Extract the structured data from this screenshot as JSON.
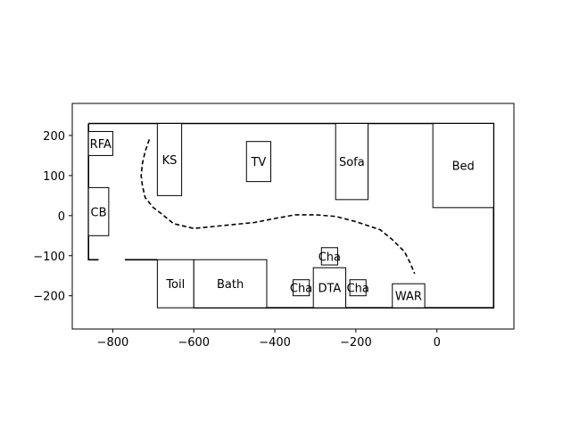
{
  "chart_data": {
    "type": "floor-plan",
    "title": "",
    "xlabel": "",
    "ylabel": "",
    "xlim": [
      -900,
      190
    ],
    "ylim": [
      -283,
      280
    ],
    "grid": false,
    "xticks": [
      -800,
      -600,
      -400,
      -200,
      0
    ],
    "xtick_labels": [
      "−800",
      "−600",
      "−400",
      "−200",
      "0"
    ],
    "yticks": [
      200,
      100,
      0,
      -100,
      -200
    ],
    "ytick_labels": [
      "200",
      "100",
      "0",
      "−100",
      "−200"
    ],
    "walls": [
      [
        [
          -860,
          230
        ],
        [
          140,
          230
        ],
        [
          140,
          -230
        ],
        [
          -600,
          -230
        ]
      ],
      [
        [
          -860,
          230
        ],
        [
          -860,
          -110
        ],
        [
          -835,
          -110
        ]
      ],
      [
        [
          -770,
          -110
        ],
        [
          -690,
          -110
        ]
      ]
    ],
    "path": [
      [
        -710,
        190
      ],
      [
        -720,
        160
      ],
      [
        -727,
        130
      ],
      [
        -730,
        100
      ],
      [
        -727,
        75
      ],
      [
        -720,
        45
      ],
      [
        -700,
        20
      ],
      [
        -680,
        5
      ],
      [
        -650,
        -20
      ],
      [
        -600,
        -32
      ],
      [
        -550,
        -27
      ],
      [
        -500,
        -22
      ],
      [
        -450,
        -17
      ],
      [
        -400,
        -7
      ],
      [
        -350,
        2
      ],
      [
        -300,
        2
      ],
      [
        -250,
        -2
      ],
      [
        -200,
        -15
      ],
      [
        -170,
        -25
      ],
      [
        -140,
        -35
      ],
      [
        -110,
        -60
      ],
      [
        -80,
        -90
      ],
      [
        -65,
        -120
      ],
      [
        -55,
        -145
      ]
    ],
    "rooms": [
      {
        "label": "RFA",
        "x0": -860,
        "y0": 150,
        "x1": -800,
        "y1": 210
      },
      {
        "label": "KS",
        "x0": -690,
        "y0": 50,
        "x1": -630,
        "y1": 230
      },
      {
        "label": "TV",
        "x0": -470,
        "y0": 85,
        "x1": -410,
        "y1": 185
      },
      {
        "label": "Sofa",
        "x0": -250,
        "y0": 40,
        "x1": -170,
        "y1": 230
      },
      {
        "label": "Bed",
        "x0": -10,
        "y0": 20,
        "x1": 140,
        "y1": 230
      },
      {
        "label": "CB",
        "x0": -860,
        "y0": -50,
        "x1": -810,
        "y1": 70
      },
      {
        "label": "Toil",
        "x0": -690,
        "y0": -230,
        "x1": -600,
        "y1": -110
      },
      {
        "label": "Bath",
        "x0": -600,
        "y0": -230,
        "x1": -420,
        "y1": -110
      },
      {
        "label": "Cha",
        "x0": -285,
        "y0": -123,
        "x1": -245,
        "y1": -80
      },
      {
        "label": "Cha",
        "x0": -355,
        "y0": -200,
        "x1": -315,
        "y1": -160
      },
      {
        "label": "DTA",
        "x0": -305,
        "y0": -230,
        "x1": -225,
        "y1": -130
      },
      {
        "label": "Cha",
        "x0": -215,
        "y0": -200,
        "x1": -175,
        "y1": -160
      },
      {
        "label": "WAR",
        "x0": -110,
        "y0": -230,
        "x1": -30,
        "y1": -170
      }
    ]
  }
}
